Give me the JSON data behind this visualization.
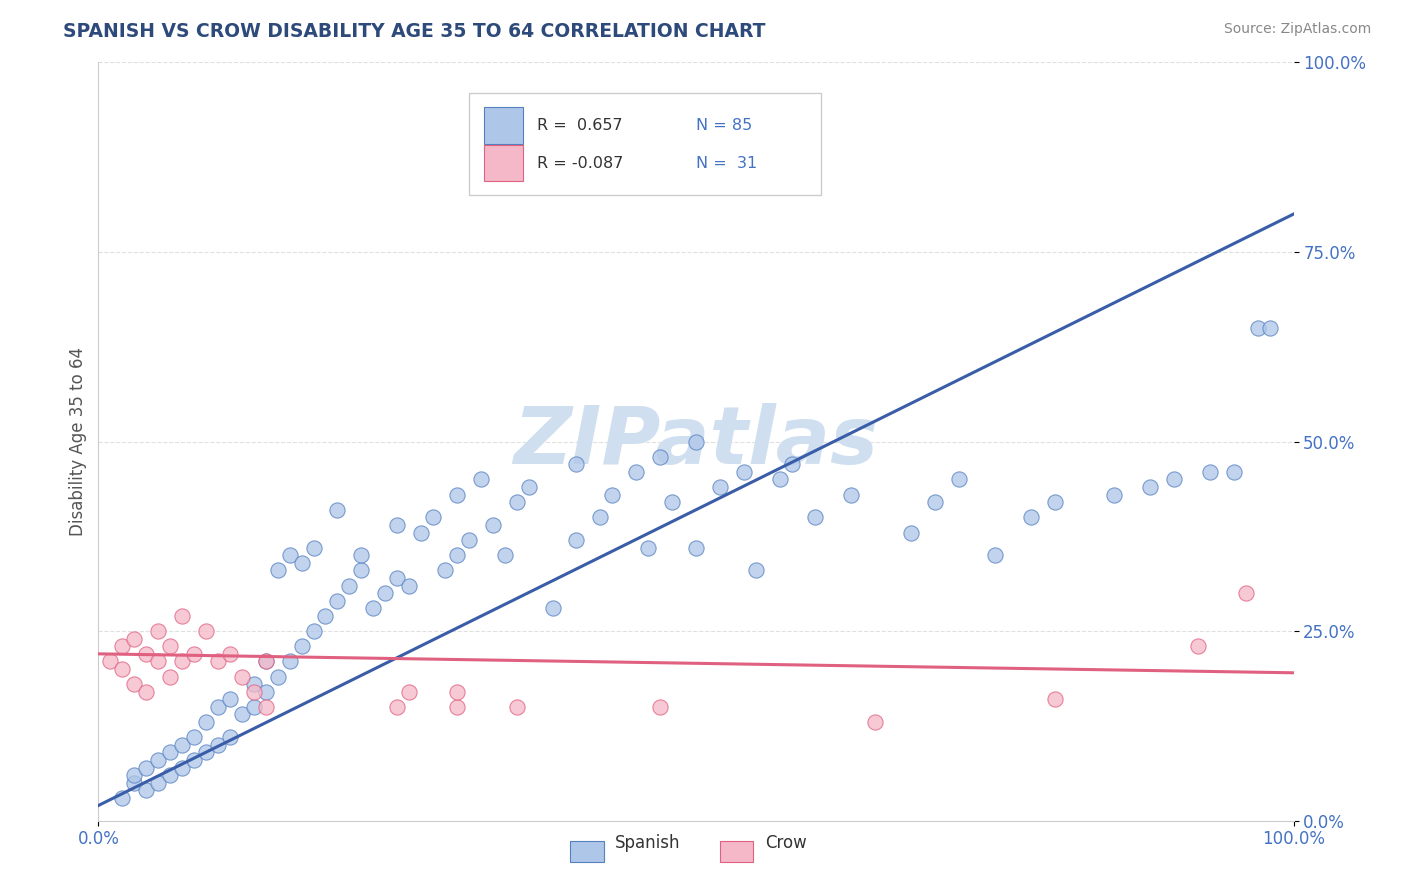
{
  "title": "SPANISH VS CROW DISABILITY AGE 35 TO 64 CORRELATION CHART",
  "source": "Source: ZipAtlas.com",
  "ylabel": "Disability Age 35 to 64",
  "spanish_R": "0.657",
  "spanish_N": "85",
  "crow_R": "-0.087",
  "crow_N": "31",
  "spanish_color": "#aec6e8",
  "crow_color": "#f4b8c8",
  "spanish_edge_color": "#5580c0",
  "crow_edge_color": "#e06080",
  "spanish_line_color": "#3a5da8",
  "crow_line_color": "#e06080",
  "watermark": "ZIPatlas",
  "watermark_color": "#d0dff0",
  "legend_labels": [
    "Spanish",
    "Crow"
  ],
  "spanish_points": [
    [
      0.02,
      0.03
    ],
    [
      0.03,
      0.05
    ],
    [
      0.03,
      0.06
    ],
    [
      0.04,
      0.04
    ],
    [
      0.04,
      0.07
    ],
    [
      0.05,
      0.05
    ],
    [
      0.05,
      0.08
    ],
    [
      0.06,
      0.06
    ],
    [
      0.06,
      0.09
    ],
    [
      0.07,
      0.07
    ],
    [
      0.07,
      0.1
    ],
    [
      0.08,
      0.08
    ],
    [
      0.08,
      0.11
    ],
    [
      0.09,
      0.09
    ],
    [
      0.09,
      0.13
    ],
    [
      0.1,
      0.1
    ],
    [
      0.1,
      0.15
    ],
    [
      0.11,
      0.11
    ],
    [
      0.11,
      0.16
    ],
    [
      0.12,
      0.14
    ],
    [
      0.13,
      0.15
    ],
    [
      0.13,
      0.18
    ],
    [
      0.14,
      0.17
    ],
    [
      0.14,
      0.21
    ],
    [
      0.15,
      0.19
    ],
    [
      0.15,
      0.33
    ],
    [
      0.16,
      0.21
    ],
    [
      0.16,
      0.35
    ],
    [
      0.17,
      0.23
    ],
    [
      0.17,
      0.34
    ],
    [
      0.18,
      0.25
    ],
    [
      0.18,
      0.36
    ],
    [
      0.19,
      0.27
    ],
    [
      0.2,
      0.29
    ],
    [
      0.2,
      0.41
    ],
    [
      0.21,
      0.31
    ],
    [
      0.22,
      0.33
    ],
    [
      0.22,
      0.35
    ],
    [
      0.23,
      0.28
    ],
    [
      0.24,
      0.3
    ],
    [
      0.25,
      0.32
    ],
    [
      0.25,
      0.39
    ],
    [
      0.26,
      0.31
    ],
    [
      0.27,
      0.38
    ],
    [
      0.28,
      0.4
    ],
    [
      0.29,
      0.33
    ],
    [
      0.3,
      0.35
    ],
    [
      0.3,
      0.43
    ],
    [
      0.31,
      0.37
    ],
    [
      0.32,
      0.45
    ],
    [
      0.33,
      0.39
    ],
    [
      0.34,
      0.35
    ],
    [
      0.35,
      0.42
    ],
    [
      0.36,
      0.44
    ],
    [
      0.38,
      0.28
    ],
    [
      0.4,
      0.37
    ],
    [
      0.4,
      0.47
    ],
    [
      0.42,
      0.4
    ],
    [
      0.43,
      0.43
    ],
    [
      0.45,
      0.46
    ],
    [
      0.46,
      0.36
    ],
    [
      0.47,
      0.48
    ],
    [
      0.48,
      0.42
    ],
    [
      0.5,
      0.36
    ],
    [
      0.5,
      0.5
    ],
    [
      0.52,
      0.44
    ],
    [
      0.54,
      0.46
    ],
    [
      0.55,
      0.33
    ],
    [
      0.57,
      0.45
    ],
    [
      0.58,
      0.47
    ],
    [
      0.6,
      0.4
    ],
    [
      0.63,
      0.43
    ],
    [
      0.68,
      0.38
    ],
    [
      0.7,
      0.42
    ],
    [
      0.72,
      0.45
    ],
    [
      0.75,
      0.35
    ],
    [
      0.78,
      0.4
    ],
    [
      0.8,
      0.42
    ],
    [
      0.85,
      0.43
    ],
    [
      0.88,
      0.44
    ],
    [
      0.9,
      0.45
    ],
    [
      0.93,
      0.46
    ],
    [
      0.95,
      0.46
    ],
    [
      0.97,
      0.65
    ],
    [
      0.98,
      0.65
    ]
  ],
  "crow_points": [
    [
      0.01,
      0.21
    ],
    [
      0.02,
      0.2
    ],
    [
      0.02,
      0.23
    ],
    [
      0.03,
      0.18
    ],
    [
      0.03,
      0.24
    ],
    [
      0.04,
      0.17
    ],
    [
      0.04,
      0.22
    ],
    [
      0.05,
      0.21
    ],
    [
      0.05,
      0.25
    ],
    [
      0.06,
      0.19
    ],
    [
      0.06,
      0.23
    ],
    [
      0.07,
      0.21
    ],
    [
      0.07,
      0.27
    ],
    [
      0.08,
      0.22
    ],
    [
      0.09,
      0.25
    ],
    [
      0.1,
      0.21
    ],
    [
      0.11,
      0.22
    ],
    [
      0.12,
      0.19
    ],
    [
      0.13,
      0.17
    ],
    [
      0.14,
      0.15
    ],
    [
      0.14,
      0.21
    ],
    [
      0.25,
      0.15
    ],
    [
      0.26,
      0.17
    ],
    [
      0.3,
      0.15
    ],
    [
      0.3,
      0.17
    ],
    [
      0.35,
      0.15
    ],
    [
      0.47,
      0.15
    ],
    [
      0.65,
      0.13
    ],
    [
      0.8,
      0.16
    ],
    [
      0.92,
      0.23
    ],
    [
      0.96,
      0.3
    ]
  ],
  "spanish_trend": [
    0.0,
    1.0,
    0.02,
    0.8
  ],
  "crow_trend": [
    0.0,
    1.0,
    0.22,
    0.195
  ],
  "figsize": [
    14.06,
    8.92
  ],
  "dpi": 100,
  "title_color": "#2d4a7a",
  "source_color": "#888888",
  "axis_label_color": "#555555",
  "tick_color": "#4472c4",
  "grid_color": "#dddddd",
  "background_color": "#ffffff",
  "ylim": [
    0,
    1.0
  ],
  "xlim": [
    0,
    1.0
  ],
  "ytick_values": [
    0.0,
    0.25,
    0.5,
    0.75,
    1.0
  ],
  "xtick_values": [
    0.0,
    1.0
  ]
}
